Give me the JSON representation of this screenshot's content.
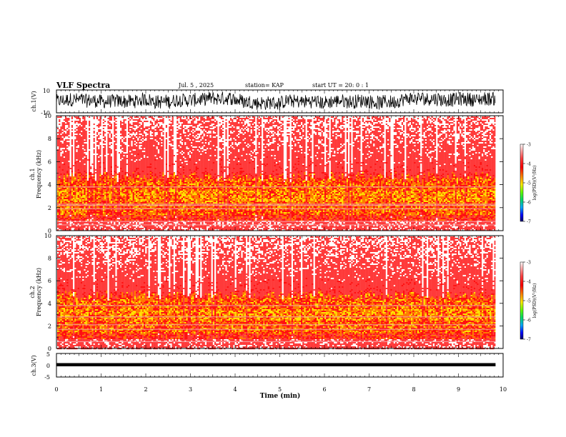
{
  "header": {
    "title": "VLF Spectra",
    "date": "Jul. 5 , 2025",
    "station": "station= KAP",
    "start_ut": "start UT =  20: 0 : 1"
  },
  "chart_data": [
    {
      "panel": "ch1-waveform",
      "type": "line",
      "ylabel": "ch.1(V)",
      "ylim": [
        -10,
        10
      ],
      "yticks": [
        "10",
        "-10"
      ],
      "xlim": [
        0,
        10
      ],
      "series": [
        {
          "values": "dense noise trace, roughly -6 V to +8 V around 0",
          "color": "#000000"
        }
      ]
    },
    {
      "panel": "ch1-spectrogram",
      "type": "heatmap",
      "ylabel": "ch.1",
      "ylabel2": "Frequency (kHz)",
      "ylim": [
        0,
        10
      ],
      "yticks": [
        "0",
        "2",
        "4",
        "6",
        "8",
        "10"
      ],
      "xlim": [
        0,
        9.83
      ],
      "colorbar": {
        "label": "log(PSD)(V²/Hz)",
        "range": [
          -7,
          -3
        ],
        "ticks": [
          "-3",
          "-4",
          "-5",
          "-6",
          "-7"
        ]
      },
      "bands_khz": [
        {
          "from": 0,
          "to": 0.9,
          "log_psd": -3.5
        },
        {
          "from": 0.9,
          "to": 4.5,
          "log_psd": -4.7
        },
        {
          "from": 4.5,
          "to": 10,
          "log_psd": -3.8
        }
      ],
      "lines_khz": [
        0.5,
        0.8,
        1.9,
        2.2,
        2.3,
        3.8
      ]
    },
    {
      "panel": "ch2-spectrogram",
      "type": "heatmap",
      "ylabel": "ch.2",
      "ylabel2": "Frequency (kHz)",
      "ylim": [
        0,
        10
      ],
      "yticks": [
        "0",
        "2",
        "4",
        "6",
        "8",
        "10"
      ],
      "xlim": [
        0,
        9.83
      ],
      "colorbar": {
        "label": "log(PSD)(V²/Hz)",
        "range": [
          -7,
          -3
        ],
        "ticks": [
          "-3",
          "-4",
          "-5",
          "-6",
          "-7"
        ]
      },
      "bands_khz": [
        {
          "from": 0,
          "to": 0.7,
          "log_psd": -3.5
        },
        {
          "from": 0.7,
          "to": 4.2,
          "log_psd": -4.7
        },
        {
          "from": 4.2,
          "to": 10,
          "log_psd": -3.8
        }
      ],
      "lines_khz": [
        0.6,
        1.7,
        2.1,
        2.8,
        3.8
      ]
    },
    {
      "panel": "ch3-waveform",
      "type": "line",
      "ylabel": "ch.3(V)",
      "ylim": [
        -5,
        5
      ],
      "yticks": [
        "5",
        "0",
        "-5"
      ],
      "xlim": [
        0,
        10
      ],
      "series": [
        {
          "values": "thick flat trace near -0.7 V",
          "color": "#000000"
        }
      ]
    }
  ],
  "xaxis": {
    "label": "Time (min)",
    "ticks": [
      "0",
      "1",
      "2",
      "3",
      "4",
      "5",
      "6",
      "7",
      "8",
      "9",
      "10"
    ],
    "range": [
      0,
      10
    ]
  },
  "colors": {
    "red": "#ff2020",
    "yellow": "#ffe000",
    "green": "#33ee00",
    "blue": "#0000ff",
    "navy": "#000066"
  }
}
